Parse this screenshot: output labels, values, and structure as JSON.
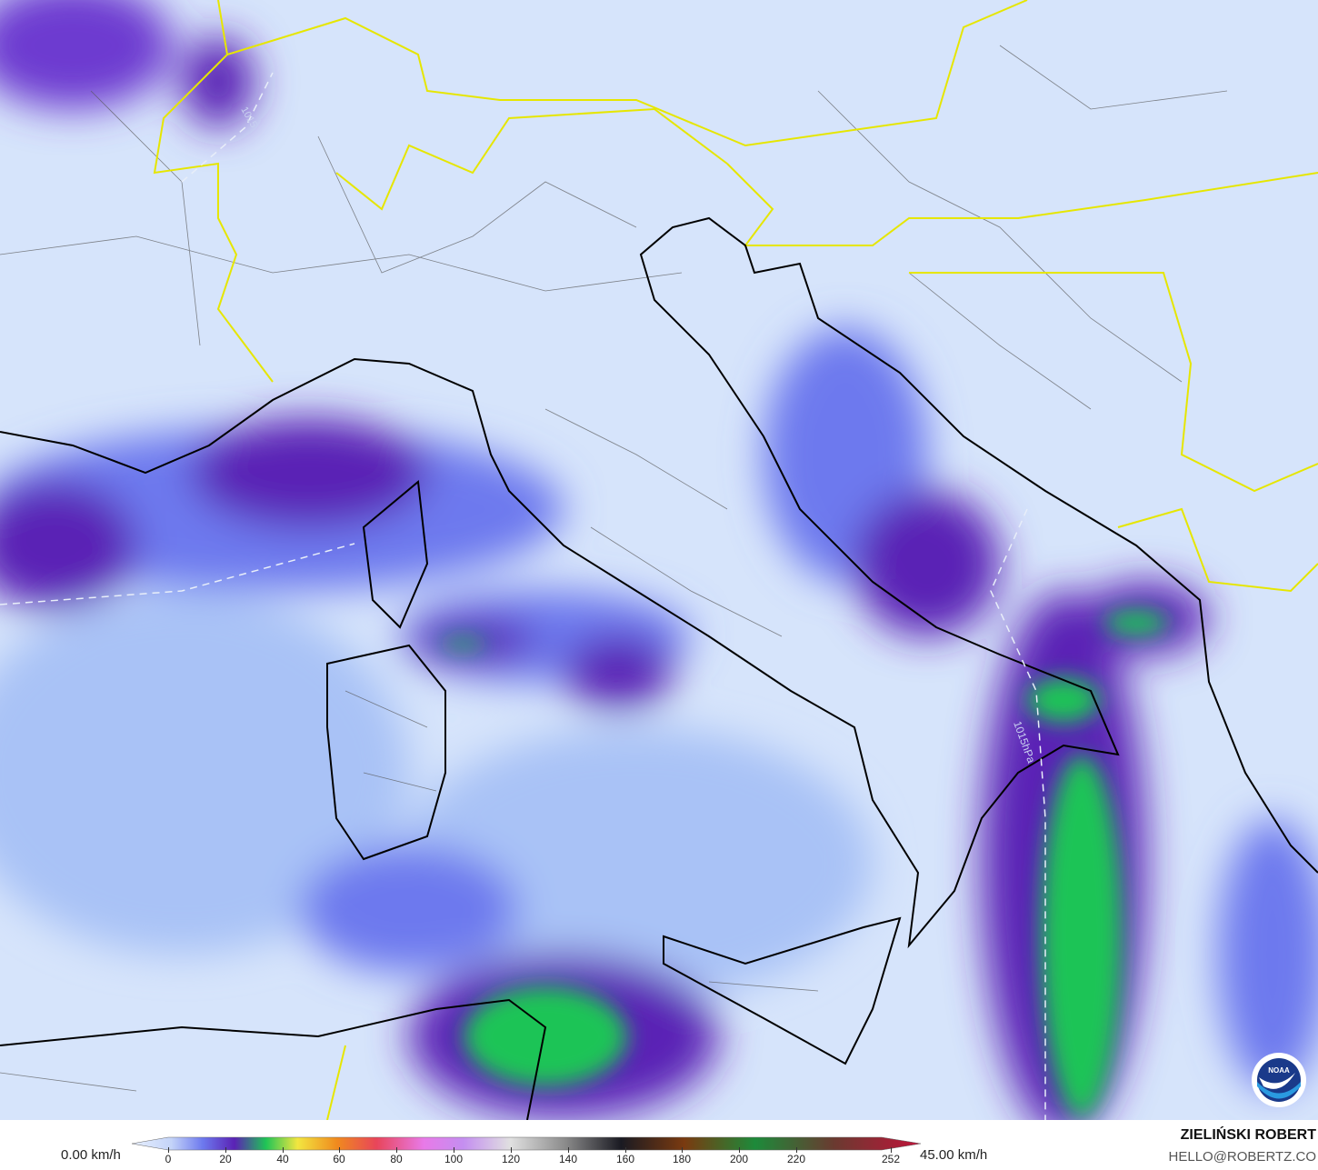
{
  "map": {
    "isobar_labels": [
      "1015hPa",
      "1015"
    ],
    "logo_text": "NOAA",
    "colors": {
      "background": "#d6e4fb",
      "light": "#a9c2f6",
      "medium": "#7088ee",
      "purple": "#5a22b5",
      "green": "#1fc456",
      "coast": "#000000",
      "border": "#e6e600",
      "admin": "#555555"
    }
  },
  "legend": {
    "min_label": "0.00 km/h",
    "max_label": "45.00 km/h",
    "ticks": [
      "0",
      "20",
      "40",
      "60",
      "80",
      "100",
      "120",
      "140",
      "160",
      "180",
      "200",
      "220",
      "252"
    ]
  },
  "credit": {
    "author": "ZIELIŃSKI ROBERT",
    "email": "HELLO@ROBERTZ.CO"
  }
}
